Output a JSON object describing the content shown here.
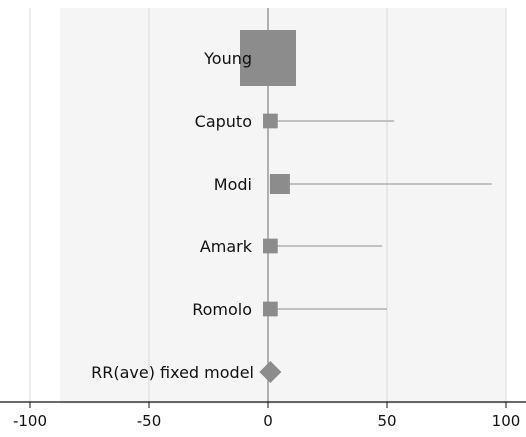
{
  "chart_data": {
    "type": "forest",
    "xlim": [
      -100,
      100
    ],
    "xticks": [
      -100,
      -50,
      0,
      50,
      100
    ],
    "grid": true,
    "colors": {
      "marker": "#8c8c8c",
      "ci_line": "#b0b0b0",
      "grid": "#d9d9d9",
      "zero_line": "#9e9e9e",
      "plot_bg": "#f5f5f5"
    },
    "studies": [
      {
        "name": "Young",
        "estimate": 0,
        "ci_low": -11,
        "ci_high": 11,
        "weight": 1.0,
        "marker": "square"
      },
      {
        "name": "Caputo",
        "estimate": 1,
        "ci_low": 0,
        "ci_high": 53,
        "weight": 0.14,
        "marker": "square"
      },
      {
        "name": "Modi",
        "estimate": 5,
        "ci_low": 1,
        "ci_high": 94,
        "weight": 0.25,
        "marker": "square"
      },
      {
        "name": "Amark",
        "estimate": 1,
        "ci_low": 0,
        "ci_high": 48,
        "weight": 0.14,
        "marker": "square"
      },
      {
        "name": "Romolo",
        "estimate": 1,
        "ci_low": 0,
        "ci_high": 50,
        "weight": 0.14,
        "marker": "square"
      }
    ],
    "summary": {
      "name": "RR(ave) fixed model",
      "estimate": 1,
      "marker": "diamond"
    }
  }
}
